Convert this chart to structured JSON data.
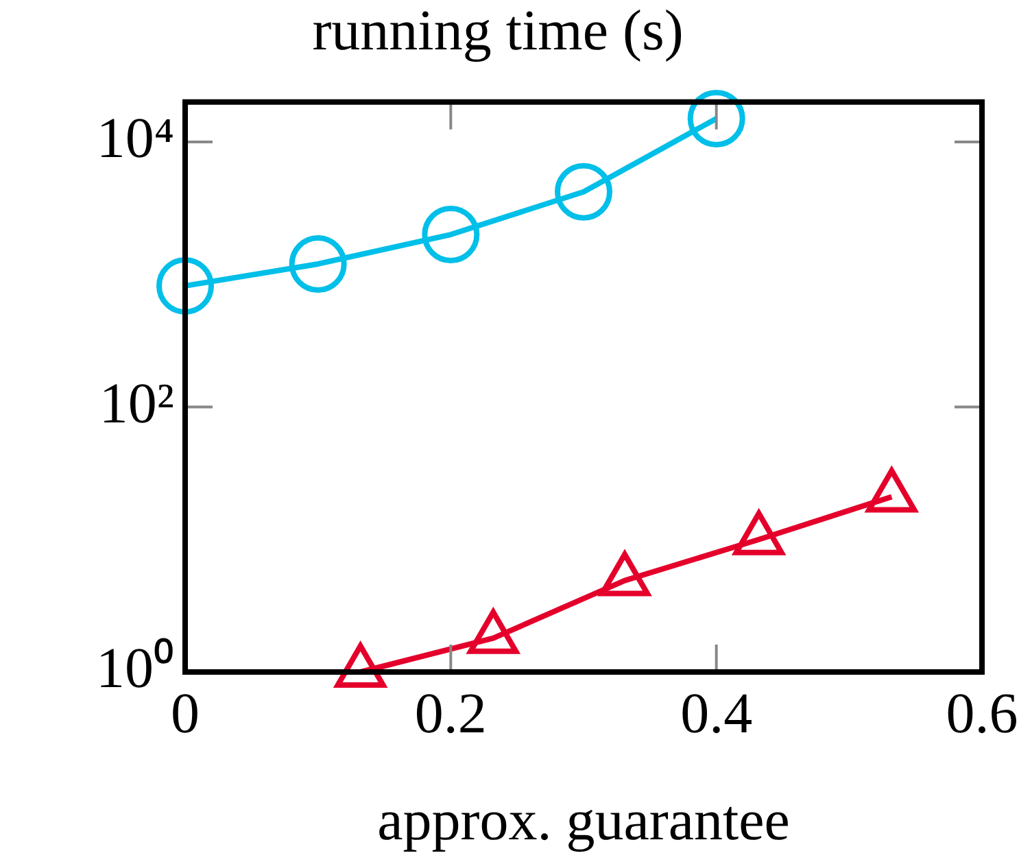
{
  "chart_data": {
    "type": "line",
    "title": "running time (s)",
    "xlabel": "approx. guarantee",
    "xlim": [
      0,
      0.6
    ],
    "xticks": [
      0,
      0.2,
      0.4,
      0.6
    ],
    "ylim": [
      1,
      20000
    ],
    "log": "y",
    "yticks": [
      {
        "value": 1,
        "label": "10⁰"
      },
      {
        "value": 100,
        "label": "10²"
      },
      {
        "value": 10000,
        "label": "10⁴"
      }
    ],
    "grid": false,
    "legend": false,
    "line_style": "solid",
    "series": [
      {
        "color": "#00bfe8",
        "marker": "circle",
        "x": [
          0,
          0.1,
          0.2,
          0.3,
          0.4
        ],
        "values": [
          820,
          1200,
          2000,
          4200,
          15000
        ]
      },
      {
        "color": "#e4002b",
        "marker": "triangle",
        "x": [
          0.132,
          0.232,
          0.331,
          0.432,
          0.532
        ],
        "values": [
          1,
          1.8,
          4.9,
          10,
          21
        ]
      }
    ]
  }
}
